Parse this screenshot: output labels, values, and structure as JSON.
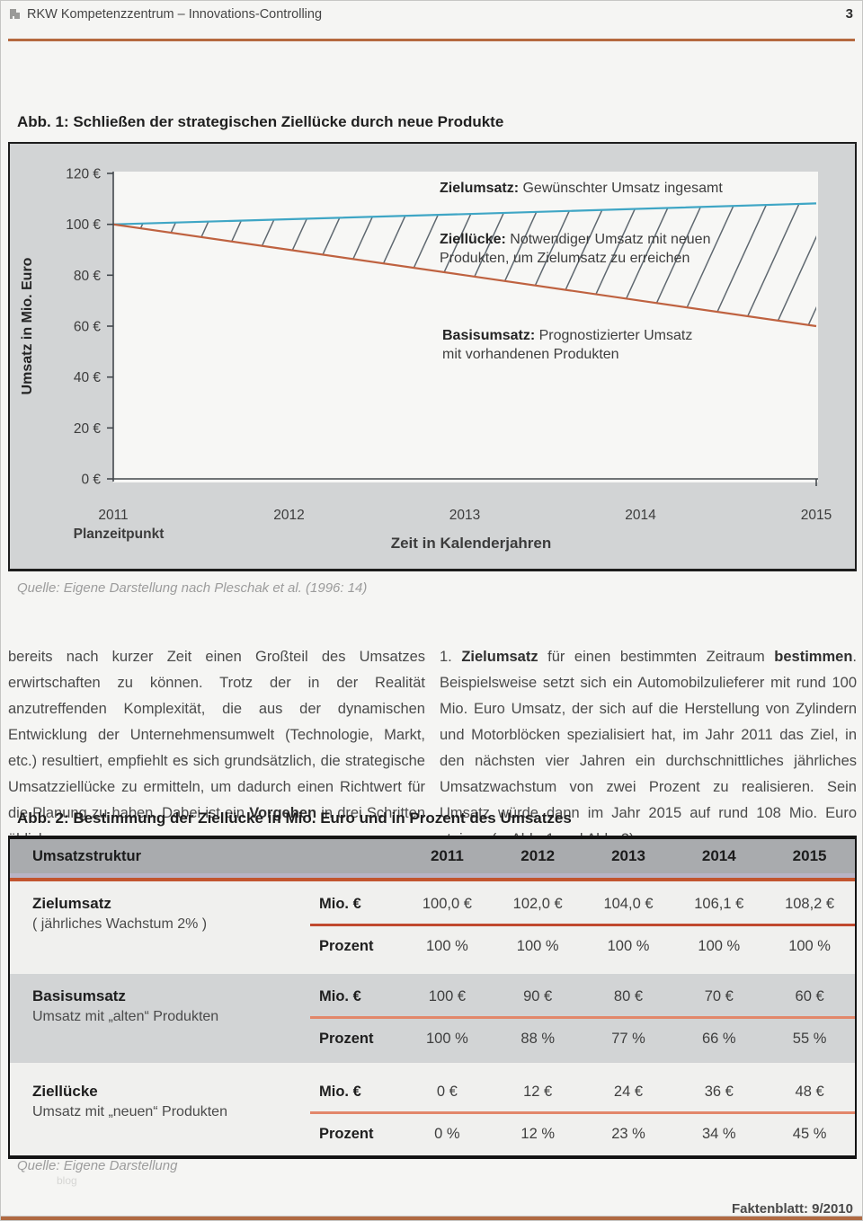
{
  "header": {
    "logo_icon": "rkw-logo-icon",
    "title": "RKW Kompetenzzentrum – Innovations-Controlling",
    "page_number": "3"
  },
  "figure1": {
    "title": "Abb. 1: Schließen der strategischen Ziellücke durch neue Produkte",
    "source": "Quelle: Eigene Darstellung nach Pleschak et al. (1996: 14)"
  },
  "chart_data": {
    "type": "line",
    "x": [
      2011,
      2012,
      2013,
      2014,
      2015
    ],
    "xlabel": "Zeit in Kalenderjahren",
    "x_note": "Planzeitpunkt",
    "ylabel": "Umsatz in Mio. Euro",
    "ylim": [
      0,
      120
    ],
    "ytick_step": 20,
    "ytick_suffix": " €",
    "grid": false,
    "legend_position": "inline-annotations",
    "series": [
      {
        "name": "Zielumsatz",
        "label": "Zielumsatz:",
        "desc": "Gewünschter Umsatz ingesamt",
        "color": "#3fa6c5",
        "values": [
          100,
          102,
          104,
          106.1,
          108.2
        ]
      },
      {
        "name": "Basisumsatz",
        "label": "Basisumsatz:",
        "desc": "Prognostizierter Umsatz mit vorhandenen Produkten",
        "color": "#bf6240",
        "values": [
          100,
          90,
          80,
          70,
          60
        ]
      }
    ],
    "gap_area": {
      "name": "Ziellücke",
      "label": "Ziellücke:",
      "desc": "Notwendiger Umsatz mit neuen Produkten, um Zielumsatz zu erreichen",
      "values": [
        0,
        12,
        24,
        36.1,
        48.2
      ],
      "style": "hatched",
      "hatch_color": "#5f6870"
    }
  },
  "body": {
    "left_segments": [
      {
        "t": "bereits nach kurzer Zeit einen Großteil des Umsatzes erwirtschaften zu können. Trotz der in der Realität anzutreffenden Komplexität, die aus der dynamischen Entwicklung der Unternehmensumwelt (Technologie, Markt, etc.) resultiert, empfiehlt es sich grundsätzlich, die strategische Umsatzziellücke zu ermitteln, um dadurch einen Richtwert für die Planung zu haben. Dabei ist ein ",
        "b": false
      },
      {
        "t": "Vorgehen",
        "b": true
      },
      {
        "t": " in drei Schritten üblich:",
        "b": false
      }
    ],
    "right_segments": [
      {
        "t": "1. ",
        "b": false
      },
      {
        "t": "Zielumsatz",
        "b": true
      },
      {
        "t": " für einen bestimmten Zeitraum ",
        "b": false
      },
      {
        "t": "bestimmen",
        "b": true
      },
      {
        "t": ". Beispielsweise setzt sich ein Automobilzulieferer mit rund 100 Mio. Euro Umsatz, der sich auf die Herstellung von Zylindern und Motorblöcken spezialisiert hat, im Jahr 2011 das Ziel, in den nächsten vier Jahren ein durchschnittliches jährliches Umsatzwachstum von zwei Prozent zu realisieren. Sein Umsatz würde dann im Jahr 2015 auf rund 108 Mio. Euro steigen (s. Abb. 1 und Abb. 2).",
        "b": false
      }
    ]
  },
  "figure2": {
    "title": "Abb. 2: Bestimmung der Ziellücke in Mio. Euro und in Prozent des Umsatzes",
    "source": "Quelle: Eigene Darstellung"
  },
  "table": {
    "header": {
      "label": "Umsatzstruktur",
      "years": [
        "2011",
        "2012",
        "2013",
        "2014",
        "2015"
      ]
    },
    "row_headers": {
      "mio": "Mio. €",
      "prozent": "Prozent"
    },
    "groups": [
      {
        "name": "Zielumsatz",
        "sub": "( jährliches Wachstum 2% )",
        "mio": [
          "100,0 €",
          "102,0 €",
          "104,0 €",
          "106,1 €",
          "108,2 €"
        ],
        "prozent": [
          "100 %",
          "100 %",
          "100 %",
          "100 %",
          "100 %"
        ],
        "shade": false,
        "divider_color": "#c0492e"
      },
      {
        "name": "Basisumsatz",
        "sub": "Umsatz mit „alten“ Produkten",
        "mio": [
          "100 €",
          "90 €",
          "80 €",
          "70 €",
          "60 €"
        ],
        "prozent": [
          "100 %",
          "88 %",
          "77 %",
          "66 %",
          "55 %"
        ],
        "shade": true,
        "divider_color": "#e2876a"
      },
      {
        "name": "Ziellücke",
        "sub": "Umsatz mit „neuen“ Produkten",
        "mio": [
          "0 €",
          "12 €",
          "24 €",
          "36 €",
          "48 €"
        ],
        "prozent": [
          "0 %",
          "12 %",
          "23 %",
          "34 %",
          "45 %"
        ],
        "shade": false,
        "divider_color": "#e2876a"
      }
    ]
  },
  "footer": {
    "watermark": "blog",
    "factsheet": "Faktenblatt: 9/2010"
  }
}
